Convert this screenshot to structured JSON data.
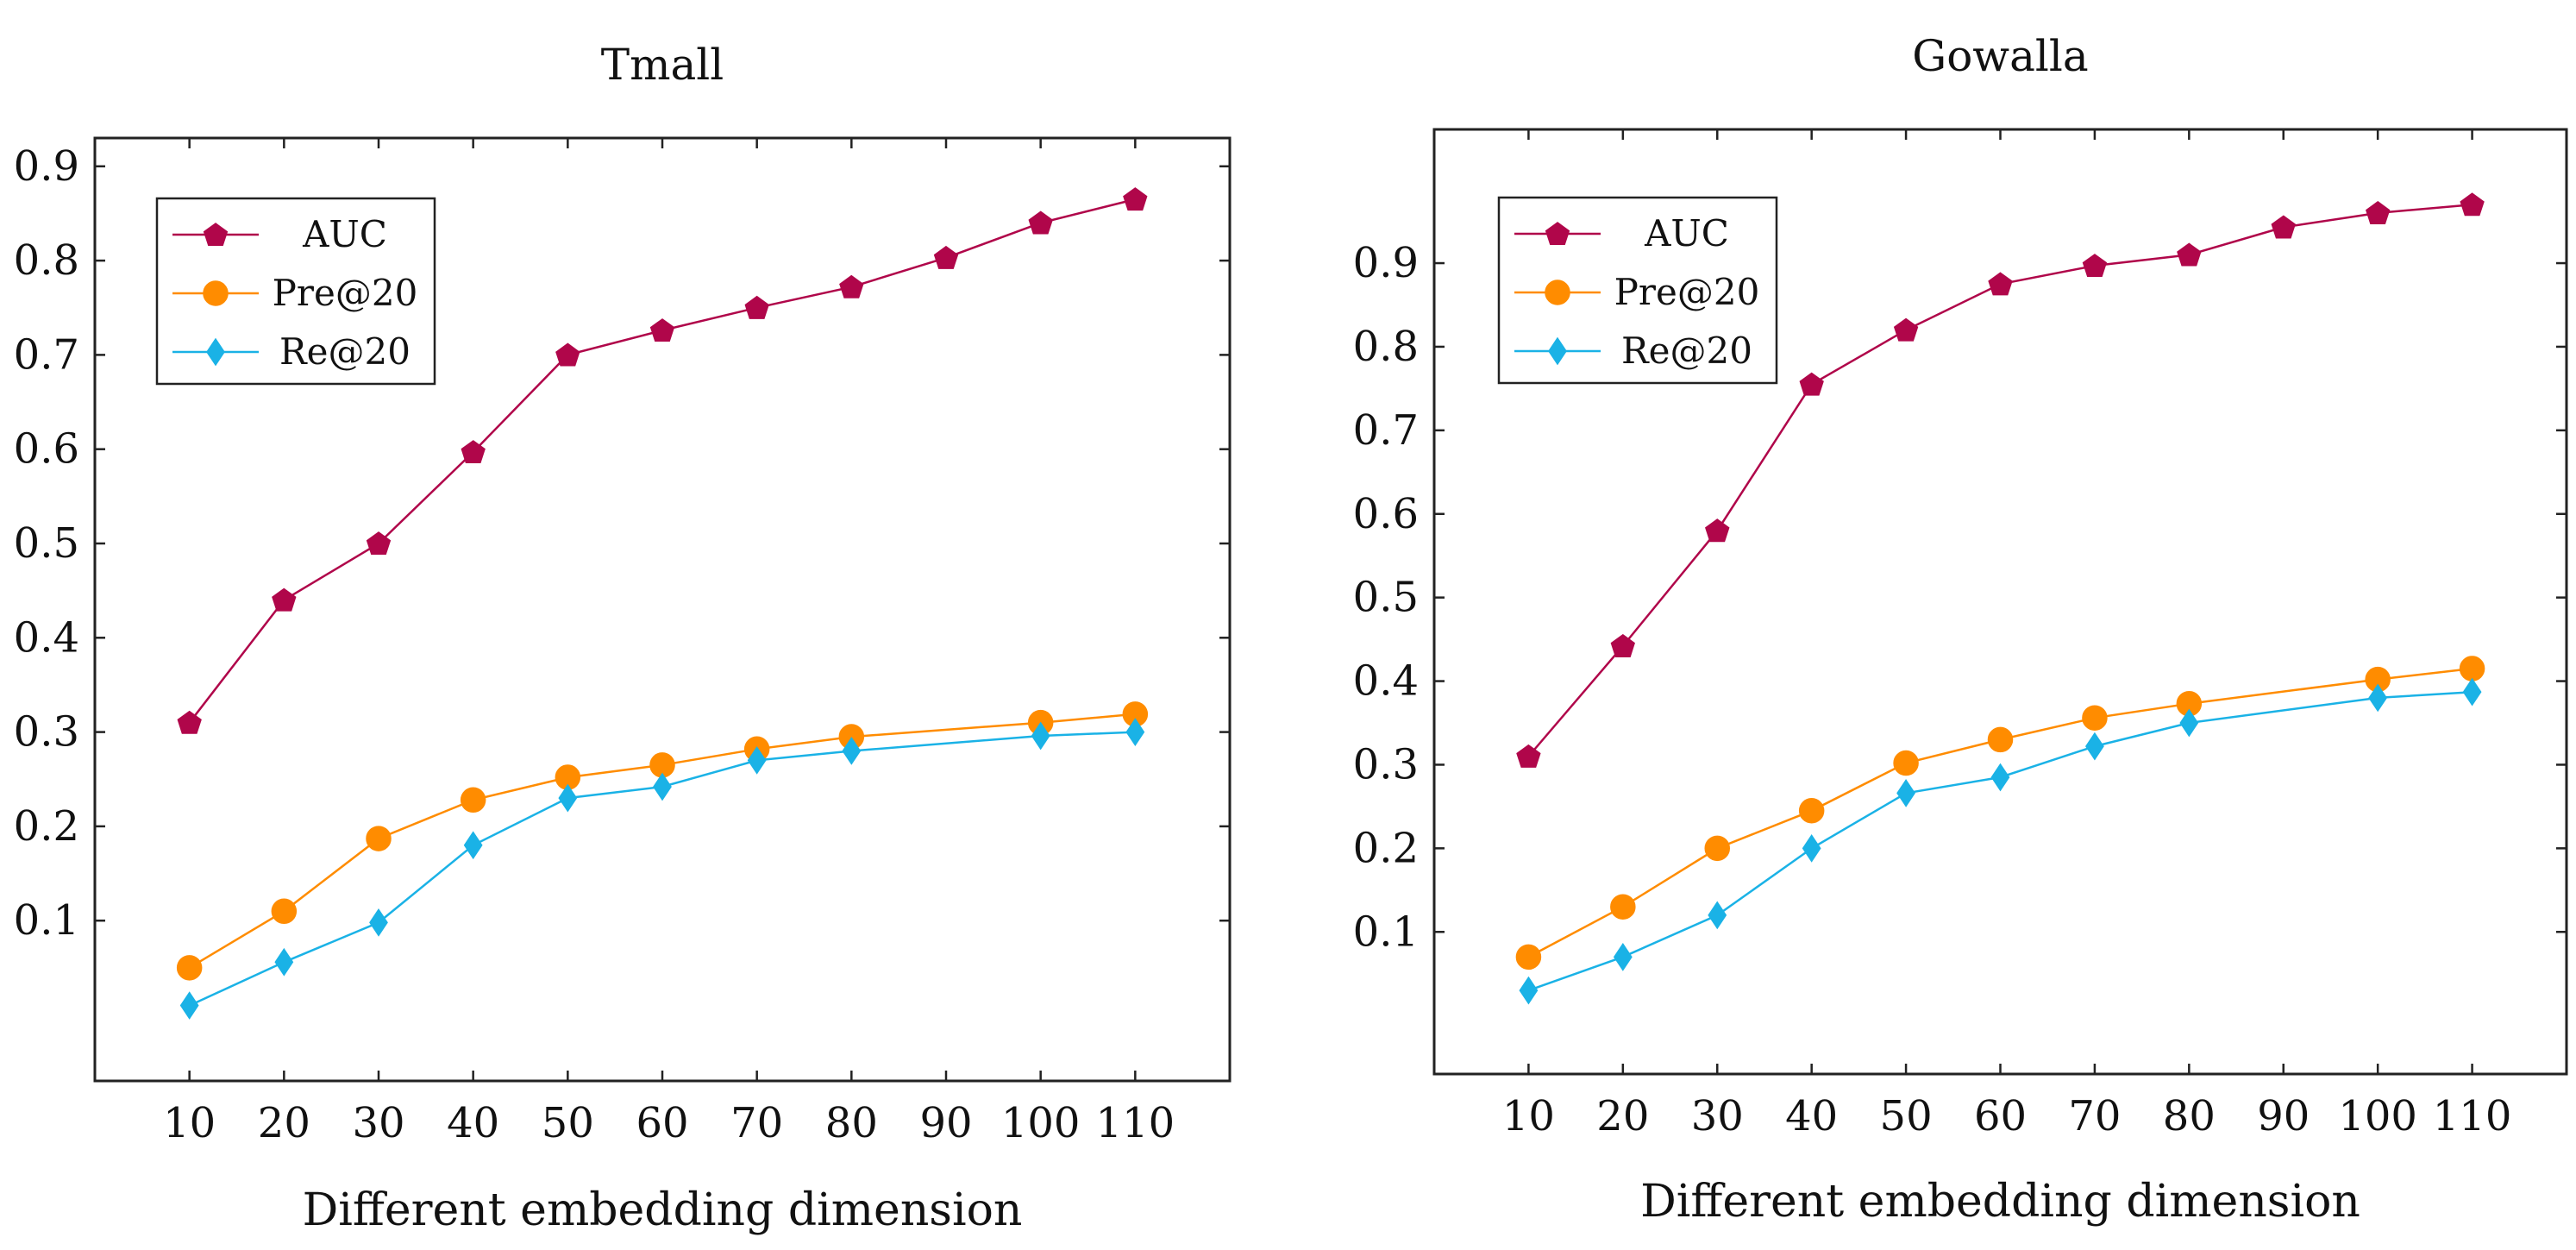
{
  "chart_data": [
    {
      "type": "line",
      "title": "Tmall",
      "xlabel": "Different embedding dimension",
      "ylabel": "",
      "x": [
        10,
        20,
        30,
        40,
        50,
        60,
        70,
        80,
        90,
        100,
        110
      ],
      "x_ticks": [
        "10",
        "20",
        "30",
        "40",
        "50",
        "60",
        "70",
        "80",
        "90",
        "100",
        "110"
      ],
      "y_ticks": [
        "0.1",
        "0.2",
        "0.3",
        "0.4",
        "0.5",
        "0.6",
        "0.7",
        "0.8",
        "0.9"
      ],
      "xlim": [
        0,
        120
      ],
      "ylim": [
        -0.07,
        0.93
      ],
      "legend": "top-left",
      "series": [
        {
          "name": "AUC",
          "color": "#b0064a",
          "marker": "pentagon",
          "values": [
            0.31,
            0.44,
            0.5,
            0.597,
            0.7,
            0.726,
            0.75,
            0.772,
            0.803,
            0.84,
            0.865
          ]
        },
        {
          "name": "Pre@20",
          "color": "#ff8c00",
          "marker": "circle",
          "values": [
            0.05,
            0.11,
            0.187,
            0.228,
            0.252,
            0.265,
            0.282,
            0.295,
            null,
            0.31,
            0.319
          ]
        },
        {
          "name": "Re@20",
          "color": "#1ab2e6",
          "marker": "diamond",
          "values": [
            0.01,
            0.056,
            0.098,
            0.18,
            0.23,
            0.242,
            0.27,
            0.28,
            null,
            0.296,
            0.3
          ]
        }
      ]
    },
    {
      "type": "line",
      "title": "Gowalla",
      "xlabel": "Different embedding dimension",
      "ylabel": "",
      "x": [
        10,
        20,
        30,
        40,
        50,
        60,
        70,
        80,
        90,
        100,
        110
      ],
      "x_ticks": [
        "10",
        "20",
        "30",
        "40",
        "50",
        "60",
        "70",
        "80",
        "90",
        "100",
        "110"
      ],
      "y_ticks": [
        "0.1",
        "0.2",
        "0.3",
        "0.4",
        "0.5",
        "0.6",
        "0.7",
        "0.8",
        "0.9"
      ],
      "xlim": [
        0,
        120
      ],
      "ylim": [
        -0.07,
        1.06
      ],
      "legend": "top-left",
      "series": [
        {
          "name": "AUC",
          "color": "#b0064a",
          "marker": "pentagon",
          "values": [
            0.31,
            0.442,
            0.58,
            0.755,
            0.82,
            0.875,
            0.897,
            0.91,
            0.943,
            0.96,
            0.97
          ]
        },
        {
          "name": "Pre@20",
          "color": "#ff8c00",
          "marker": "circle",
          "values": [
            0.07,
            0.13,
            0.2,
            0.245,
            0.302,
            0.33,
            0.356,
            0.373,
            null,
            0.402,
            0.415
          ]
        },
        {
          "name": "Re@20",
          "color": "#1ab2e6",
          "marker": "diamond",
          "values": [
            0.03,
            0.07,
            0.12,
            0.2,
            0.266,
            0.285,
            0.322,
            0.35,
            null,
            0.38,
            0.387
          ]
        }
      ]
    }
  ]
}
